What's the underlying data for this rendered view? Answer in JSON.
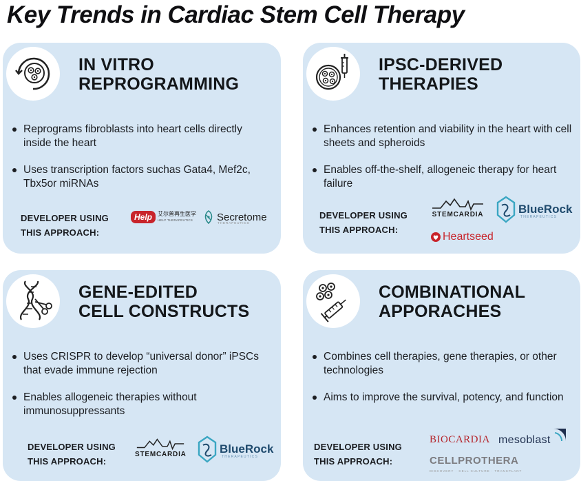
{
  "title": "Key Trends in Cardiac Stem Cell Therapy",
  "developer_label_line1": "DEVELOPER USING",
  "developer_label_line2": "THIS APPROACH:",
  "cards": [
    {
      "icon": "petri-dish-cycle-icon",
      "heading_line1": "IN VITRO",
      "heading_line2": "REPROGRAMMING",
      "bullets": [
        "Reprograms fibroblasts into heart cells directly inside the heart",
        "Uses transcription factors suchas Gata4, Mef2c, Tbx5or miRNAs"
      ]
    },
    {
      "icon": "cell-dish-syringe-icon",
      "heading_line1": "IPSC-DERIVED",
      "heading_line2": "THERAPIES",
      "bullets": [
        "Enhances retention and viability in the heart with cell sheets and spheroids",
        "Enables off-the-shelf, allogeneic therapy for heart failure"
      ]
    },
    {
      "icon": "dna-scissors-icon",
      "heading_line1": "GENE-EDITED",
      "heading_line2": "CELL CONSTRUCTS",
      "bullets": [
        "Uses CRISPR to develop “universal donor” iPSCs that evade immune rejection",
        "Enables allogeneic therapies without immunosuppressants"
      ]
    },
    {
      "icon": "cells-syringe-icon",
      "heading_line1": "COMBINATIONAL",
      "heading_line2": "APPORACHES",
      "bullets": [
        "Combines cell therapies, gene therapies, or other technologies",
        "Aims to improve the survival, potency, and function"
      ]
    }
  ],
  "logos": {
    "help_badge": "Help",
    "help_cn": "艾尔普再生医学",
    "help_en": "HELP THERAPEUTICS",
    "secretome": "Secretome",
    "secretome_sub": "THERAPEUTICS",
    "stemcardia": "STEMCARDIA",
    "bluerock": "BlueRock",
    "bluerock_sub": "THERAPEUTICS",
    "heartseed": "Heartseed",
    "biocardia": "BIOCARDIA",
    "mesoblast": "mesoblast",
    "cellprothera": "CELLPROTHERA",
    "cellprothera_sub": "DISCOVERY · CELL CULTURE · TRANSPLANT"
  },
  "colors": {
    "card_bg": "#d6e6f4",
    "help_red": "#c8242b",
    "bluerock_navy": "#1f4a6d",
    "bluerock_teal": "#3aa6c2",
    "biocardia_red": "#b5252b",
    "mesoblast_navy": "#1f2f4e"
  }
}
